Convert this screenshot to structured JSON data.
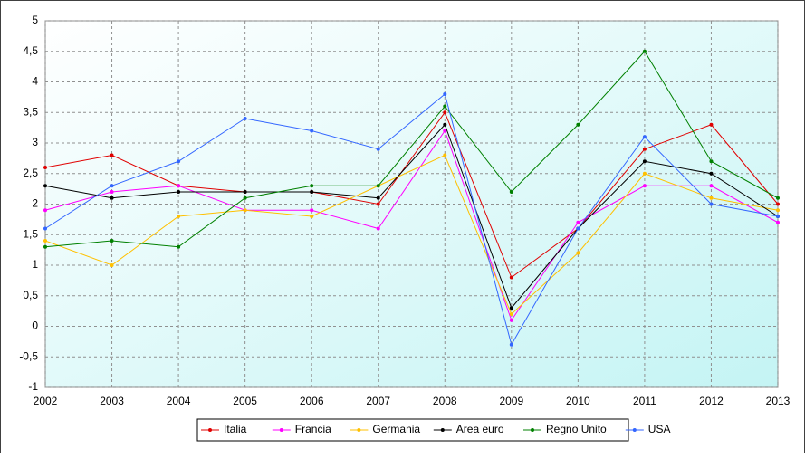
{
  "chart_data": {
    "type": "line",
    "x": [
      2002,
      2003,
      2004,
      2005,
      2006,
      2007,
      2008,
      2009,
      2010,
      2011,
      2012,
      2013
    ],
    "xlim": [
      2002,
      2013
    ],
    "xticks": [
      2002,
      2003,
      2004,
      2005,
      2006,
      2007,
      2008,
      2009,
      2010,
      2011,
      2012,
      2013
    ],
    "ylim": [
      -1,
      5
    ],
    "yticks": [
      -1,
      {
        "value": -0.5,
        "label": "-0,5"
      },
      0,
      {
        "value": 0.5,
        "label": "0,5"
      },
      1,
      {
        "value": 1.5,
        "label": "1,5"
      },
      2,
      {
        "value": 2.5,
        "label": "2,5"
      },
      3,
      {
        "value": 3.5,
        "label": "3,5"
      },
      4,
      {
        "value": 4.5,
        "label": "4,5"
      },
      5
    ],
    "grid": true,
    "legend": "bottom",
    "series": [
      {
        "name": "Italia",
        "color": "#e00000",
        "values": [
          2.6,
          2.8,
          2.3,
          2.2,
          2.2,
          2.0,
          3.5,
          0.8,
          1.6,
          2.9,
          3.3,
          2.0
        ]
      },
      {
        "name": "Francia",
        "color": "#ff00ff",
        "values": [
          1.9,
          2.2,
          2.3,
          1.9,
          1.9,
          1.6,
          3.2,
          0.1,
          1.7,
          2.3,
          2.3,
          1.7
        ]
      },
      {
        "name": "Germania",
        "color": "#ffc000",
        "values": [
          1.4,
          1.0,
          1.8,
          1.9,
          1.8,
          2.3,
          2.8,
          0.2,
          1.2,
          2.5,
          2.1,
          1.9
        ]
      },
      {
        "name": "Area euro",
        "color": "#000000",
        "values": [
          2.3,
          2.1,
          2.2,
          2.2,
          2.2,
          2.1,
          3.3,
          0.3,
          1.6,
          2.7,
          2.5,
          1.8
        ]
      },
      {
        "name": "Regno Unito",
        "color": "#008000",
        "values": [
          1.3,
          1.4,
          1.3,
          2.1,
          2.3,
          2.3,
          3.6,
          2.2,
          3.3,
          4.5,
          2.7,
          2.1
        ]
      },
      {
        "name": "USA",
        "color": "#3366ff",
        "values": [
          1.6,
          2.3,
          2.7,
          3.4,
          3.2,
          2.9,
          3.8,
          -0.3,
          1.6,
          3.1,
          2.0,
          1.8
        ]
      }
    ]
  }
}
